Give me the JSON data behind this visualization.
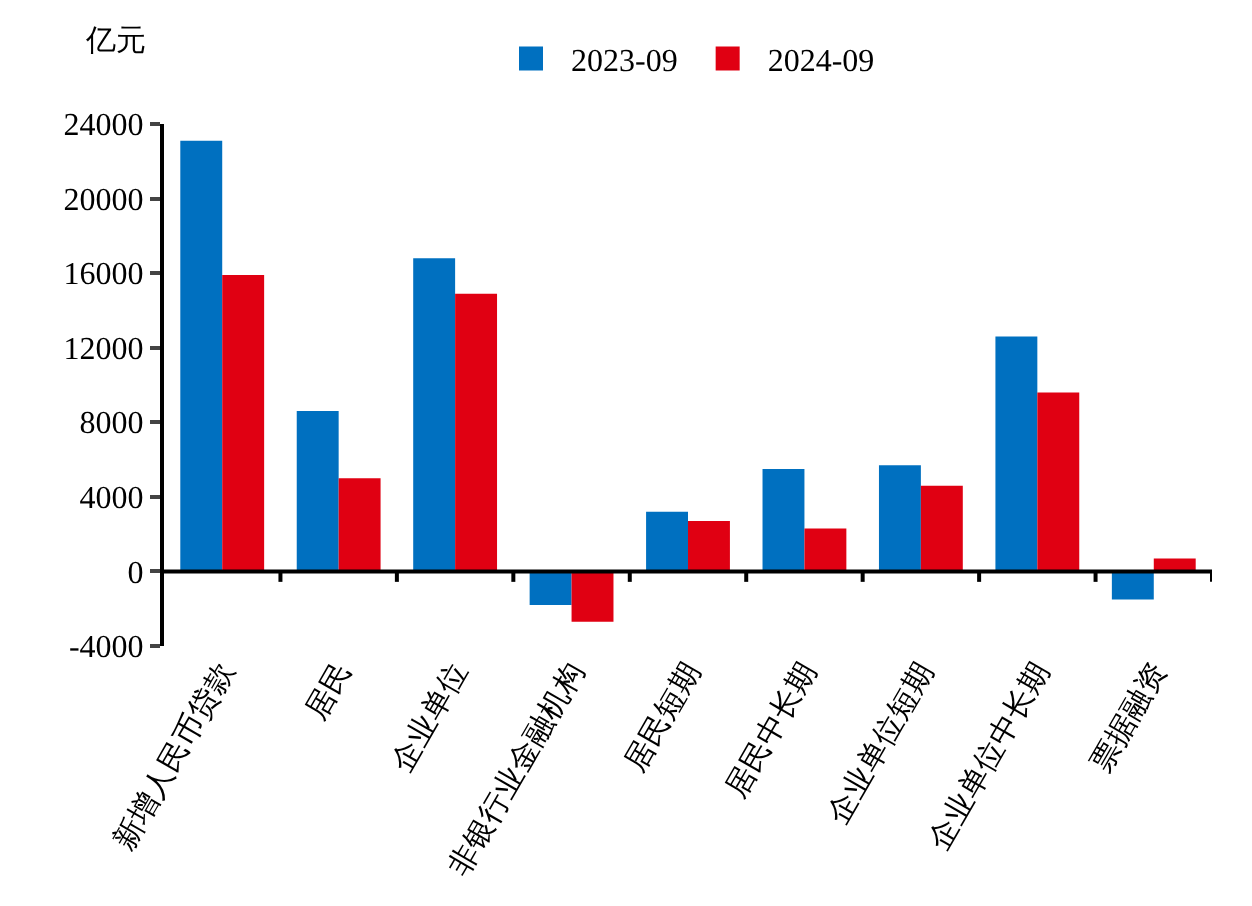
{
  "chart_data": {
    "type": "bar",
    "ylabel": "亿元",
    "categories": [
      "新增人民币贷款",
      "居民",
      "企业单位",
      "非银行业金融机构",
      "居民短期",
      "居民中长期",
      "企业单位短期",
      "企业单位中长期",
      "票据融资"
    ],
    "series": [
      {
        "name": "2023-09",
        "color": "#0070c0",
        "values": [
          23100,
          8600,
          16800,
          -1800,
          3200,
          5500,
          5700,
          12600,
          -1500
        ]
      },
      {
        "name": "2024-09",
        "color": "#e00012",
        "values": [
          15900,
          5000,
          14900,
          -2700,
          2700,
          2300,
          4600,
          9600,
          700
        ]
      }
    ],
    "ylim": [
      -4000,
      24000
    ],
    "yticks": [
      -4000,
      0,
      4000,
      8000,
      12000,
      16000,
      20000,
      24000
    ],
    "legend": "top"
  }
}
